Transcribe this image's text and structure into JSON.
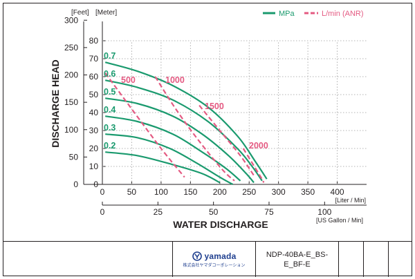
{
  "chart_data": {
    "type": "line",
    "legend": [
      {
        "label": "MPa",
        "style": "solid",
        "color": "#1a9a6e"
      },
      {
        "label": "L/min (ANR)",
        "style": "dashed",
        "color": "#e45a82"
      }
    ],
    "units": {
      "head_left": "[Feet]",
      "head_right": "[Meter]",
      "x_top": "[Liter / Min]",
      "x_bottom": "[US Gallon / Min]"
    },
    "ylabel": "DISCHARGE HEAD",
    "xlabel": "WATER DISCHARGE",
    "y_feet_ticks": [
      "0",
      "50",
      "100",
      "150",
      "200",
      "250",
      "300"
    ],
    "y_meter_ticks": [
      "0",
      "10",
      "20",
      "30",
      "40",
      "50",
      "60",
      "70",
      "80"
    ],
    "x_liter_ticks": [
      "0",
      "50",
      "100",
      "150",
      "200",
      "250",
      "300",
      "350",
      "400"
    ],
    "x_gallon_ticks": [
      "0",
      "25",
      "50",
      "75",
      "100"
    ],
    "ylim_meter": [
      0,
      90
    ],
    "xlim_liter": [
      0,
      450
    ],
    "pressure_curves": [
      {
        "name": "0.7",
        "points": [
          [
            5,
            68
          ],
          [
            60,
            63
          ],
          [
            120,
            55
          ],
          [
            180,
            43
          ],
          [
            230,
            27
          ],
          [
            260,
            13
          ],
          [
            280,
            3
          ]
        ]
      },
      {
        "name": "0.6",
        "points": [
          [
            5,
            58
          ],
          [
            60,
            54
          ],
          [
            120,
            47
          ],
          [
            180,
            35
          ],
          [
            230,
            20
          ],
          [
            255,
            10
          ],
          [
            272,
            2
          ]
        ]
      },
      {
        "name": "0.5",
        "points": [
          [
            5,
            48
          ],
          [
            60,
            45
          ],
          [
            120,
            38
          ],
          [
            170,
            28
          ],
          [
            215,
            16
          ],
          [
            245,
            6
          ],
          [
            258,
            1
          ]
        ]
      },
      {
        "name": "0.4",
        "points": [
          [
            5,
            38
          ],
          [
            60,
            35
          ],
          [
            120,
            28
          ],
          [
            170,
            18
          ],
          [
            210,
            9
          ],
          [
            235,
            2
          ]
        ]
      },
      {
        "name": "0.3",
        "points": [
          [
            5,
            28
          ],
          [
            60,
            26
          ],
          [
            115,
            20
          ],
          [
            160,
            12
          ],
          [
            200,
            4
          ],
          [
            222,
            0
          ]
        ]
      },
      {
        "name": "0.2",
        "points": [
          [
            5,
            18
          ],
          [
            60,
            16
          ],
          [
            120,
            11
          ],
          [
            170,
            6
          ],
          [
            200,
            1
          ]
        ]
      }
    ],
    "air_curves": [
      {
        "name": "500",
        "points": [
          [
            5,
            62
          ],
          [
            50,
            42
          ],
          [
            100,
            20
          ],
          [
            140,
            4
          ]
        ]
      },
      {
        "name": "1000",
        "points": [
          [
            90,
            60
          ],
          [
            125,
            42
          ],
          [
            165,
            24
          ],
          [
            205,
            8
          ],
          [
            225,
            2
          ]
        ]
      },
      {
        "name": "1500",
        "points": [
          [
            165,
            44
          ],
          [
            200,
            30
          ],
          [
            235,
            16
          ],
          [
            260,
            4
          ]
        ]
      },
      {
        "name": "2000",
        "points": [
          [
            240,
            20
          ],
          [
            255,
            12
          ],
          [
            270,
            4
          ],
          [
            275,
            1
          ]
        ]
      }
    ]
  },
  "title_block": {
    "logo_text": "yamada",
    "logo_sub": "株式会社ヤマダコーポレーション",
    "model": "NDP-40BA-E_BS-E_BF-E"
  }
}
